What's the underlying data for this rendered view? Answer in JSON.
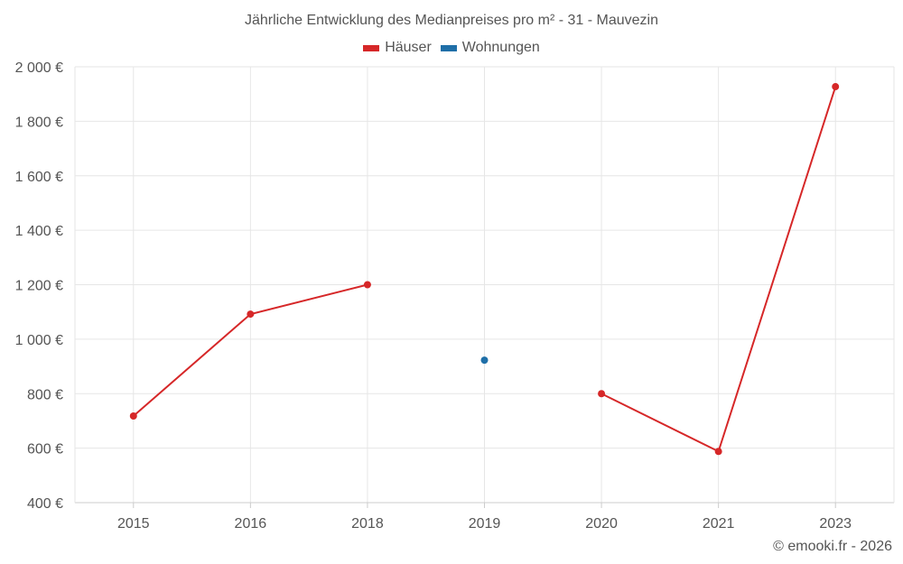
{
  "chart_data": {
    "type": "line",
    "title": "Jährliche Entwicklung des Medianpreises pro m² - 31 - Mauvezin",
    "categories": [
      "2015",
      "2016",
      "2018",
      "2019",
      "2020",
      "2021",
      "2023"
    ],
    "series": [
      {
        "name": "Häuser",
        "color": "#d62728",
        "values": [
          718,
          1092,
          1200,
          null,
          800,
          588,
          1927
        ]
      },
      {
        "name": "Wohnungen",
        "color": "#1f6fa8",
        "values": [
          null,
          null,
          null,
          923,
          null,
          null,
          null
        ]
      }
    ],
    "ylim": [
      400,
      2000
    ],
    "yticks": [
      400,
      600,
      800,
      1000,
      1200,
      1400,
      1600,
      1800,
      2000
    ],
    "ytick_labels": [
      "400 €",
      "600 €",
      "800 €",
      "1 000 €",
      "1 200 €",
      "1 400 €",
      "1 600 €",
      "1 800 €",
      "2 000 €"
    ],
    "xlabel": "",
    "ylabel": "",
    "grid": true,
    "legend": "top-center"
  },
  "credit": "© emooki.fr - 2026"
}
